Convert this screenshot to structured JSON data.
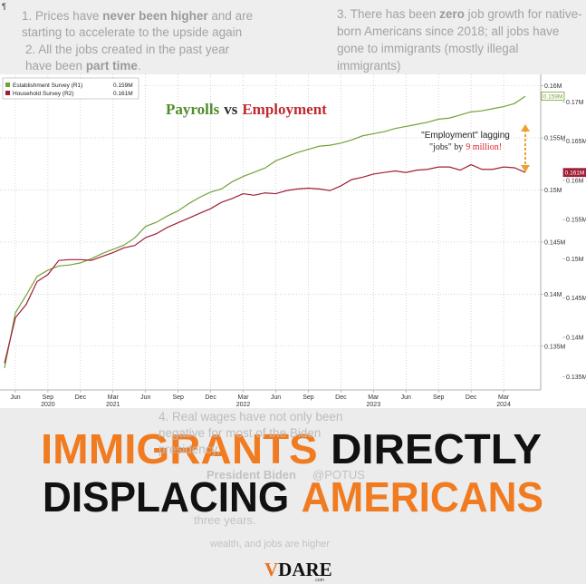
{
  "mark": "¶",
  "notes": [
    {
      "parts": [
        "1. Prices have ",
        "never been higher",
        " and are starting to accelerate to the upside again"
      ]
    },
    {
      "parts": [
        "2. All the jobs created in the past year have been ",
        "part time",
        "."
      ]
    },
    {
      "parts": [
        "3. There has been ",
        "zero",
        " job growth for native-born Americans since 2018; all jobs have gone to immigrants (mostly illegal immigrants)"
      ]
    },
    {
      "parts": [
        "4. Real wages have not only been negative for most of the Biden presidency,"
      ]
    }
  ],
  "tweet": {
    "name": "President Biden",
    "handle": "@POTUS",
    "lines": [
      "three years.",
      "wealth, and jobs are higher"
    ]
  },
  "chart_data": {
    "type": "line",
    "title_parts": [
      "Payrolls",
      "vs",
      "Employment"
    ],
    "annotation": {
      "line1": "\"Employment\" lagging",
      "line2": "\"jobs\" by",
      "highlight": "9 million!"
    },
    "x": [
      "2020-05",
      "2020-06",
      "2020-07",
      "2020-08",
      "2020-09",
      "2020-10",
      "2020-11",
      "2020-12",
      "2021-01",
      "2021-02",
      "2021-03",
      "2021-04",
      "2021-05",
      "2021-06",
      "2021-07",
      "2021-08",
      "2021-09",
      "2021-10",
      "2021-11",
      "2021-12",
      "2022-01",
      "2022-02",
      "2022-03",
      "2022-04",
      "2022-05",
      "2022-06",
      "2022-07",
      "2022-08",
      "2022-09",
      "2022-10",
      "2022-11",
      "2022-12",
      "2023-01",
      "2023-02",
      "2023-03",
      "2023-04",
      "2023-05",
      "2023-06",
      "2023-07",
      "2023-08",
      "2023-09",
      "2023-10",
      "2023-11",
      "2023-12",
      "2024-01",
      "2024-02",
      "2024-03",
      "2024-04",
      "2024-05"
    ],
    "xlim": [
      "2020-05",
      "2024-06"
    ],
    "xticks": [
      {
        "value": "2020-06",
        "label": "Jun"
      },
      {
        "value": "2020-09",
        "label": "Sep"
      },
      {
        "value": "2020-12",
        "label": "Dec"
      },
      {
        "value": "2021-03",
        "label": "Mar"
      },
      {
        "value": "2021-06",
        "label": "Jun"
      },
      {
        "value": "2021-09",
        "label": "Sep"
      },
      {
        "value": "2021-12",
        "label": "Dec"
      },
      {
        "value": "2022-03",
        "label": "Mar"
      },
      {
        "value": "2022-06",
        "label": "Jun"
      },
      {
        "value": "2022-09",
        "label": "Sep"
      },
      {
        "value": "2022-12",
        "label": "Dec"
      },
      {
        "value": "2023-03",
        "label": "Mar"
      },
      {
        "value": "2023-06",
        "label": "Jun"
      },
      {
        "value": "2023-09",
        "label": "Sep"
      },
      {
        "value": "2023-12",
        "label": "Dec"
      },
      {
        "value": "2024-03",
        "label": "Mar"
      }
    ],
    "year_labels": [
      {
        "value": "2020-09",
        "label": "2020"
      },
      {
        "value": "2021-03",
        "label": "2021"
      },
      {
        "value": "2022-03",
        "label": "2022"
      },
      {
        "value": "2023-03",
        "label": "2023"
      },
      {
        "value": "2024-03",
        "label": "2024"
      }
    ],
    "ylim": [
      0.1308,
      0.1611
    ],
    "yticks": [
      {
        "value": 0.135,
        "label": "0.135M"
      },
      {
        "value": 0.14,
        "label": "0.14M"
      },
      {
        "value": 0.145,
        "label": "0.145M"
      },
      {
        "value": 0.15,
        "label": "0.15M"
      },
      {
        "value": 0.155,
        "label": "0.155M"
      },
      {
        "value": 0.16,
        "label": "0.16M"
      }
    ],
    "y2lim": [
      0.1333,
      0.1735
    ],
    "y2ticks": [
      {
        "value": 0.135,
        "label": "0.135M"
      },
      {
        "value": 0.14,
        "label": "0.14M"
      },
      {
        "value": 0.145,
        "label": "0.145M"
      },
      {
        "value": 0.15,
        "label": "0.15M"
      },
      {
        "value": 0.155,
        "label": "0.155M"
      },
      {
        "value": 0.16,
        "label": "0.16M"
      },
      {
        "value": 0.165,
        "label": "0.165M"
      },
      {
        "value": 0.17,
        "label": "0.17M"
      }
    ],
    "grid": true,
    "legend": "top-left",
    "series": [
      {
        "name": "Establishment Survey (R1)",
        "color": "#73a236",
        "last_value_label": "0.159M",
        "values": [
          0.1329,
          0.1382,
          0.1399,
          0.1417,
          0.1423,
          0.1427,
          0.1428,
          0.143,
          0.1434,
          0.1439,
          0.1443,
          0.1447,
          0.1454,
          0.1465,
          0.1469,
          0.1475,
          0.148,
          0.1487,
          0.1493,
          0.1498,
          0.1501,
          0.1508,
          0.1513,
          0.1517,
          0.1521,
          0.1528,
          0.1532,
          0.1536,
          0.1539,
          0.1542,
          0.1543,
          0.1545,
          0.1548,
          0.1552,
          0.1554,
          0.1556,
          0.1559,
          0.1561,
          0.1563,
          0.1565,
          0.1568,
          0.1569,
          0.1572,
          0.1575,
          0.1576,
          0.1578,
          0.158,
          0.1583,
          0.159
        ]
      },
      {
        "name": "Household Survey (R2)",
        "color": "#9e1f36",
        "axis": "y2",
        "last_value_label": "0.161M",
        "values": [
          0.1367,
          0.1425,
          0.1442,
          0.1471,
          0.148,
          0.1498,
          0.1499,
          0.1499,
          0.1498,
          0.1503,
          0.1508,
          0.1514,
          0.1517,
          0.1527,
          0.1532,
          0.154,
          0.1546,
          0.1552,
          0.1558,
          0.1564,
          0.1572,
          0.1577,
          0.1583,
          0.1581,
          0.1584,
          0.1583,
          0.1587,
          0.1589,
          0.159,
          0.1589,
          0.1587,
          0.1593,
          0.1601,
          0.1604,
          0.1608,
          0.161,
          0.1612,
          0.161,
          0.1613,
          0.1614,
          0.1617,
          0.1617,
          0.1613,
          0.162,
          0.1614,
          0.1614,
          0.1617,
          0.1616,
          0.161
        ]
      }
    ]
  },
  "headline": {
    "line1": [
      "IMMIGRANTS",
      "DIRECTLY"
    ],
    "line2": [
      "DISPLACING",
      "AMERICANS"
    ]
  },
  "logo": {
    "parts": [
      "V",
      "DARE"
    ],
    "suffix": ".com"
  }
}
